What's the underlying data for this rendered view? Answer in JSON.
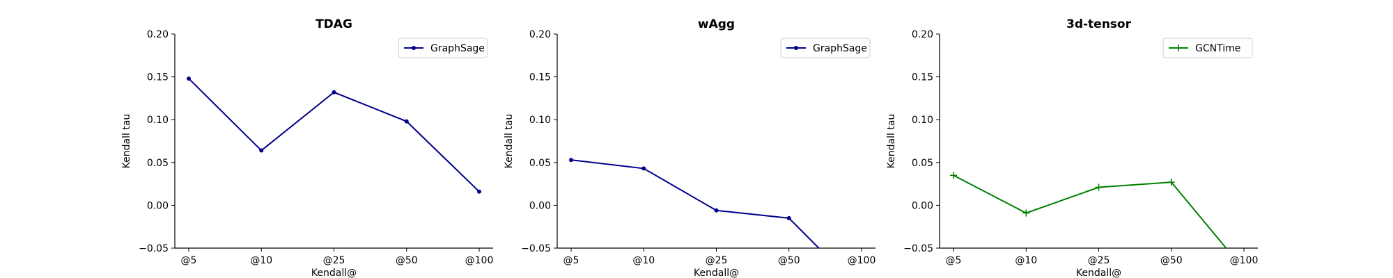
{
  "chart_data": [
    {
      "type": "line",
      "title": "TDAG",
      "xlabel": "Kendall@",
      "ylabel": "Kendall tau",
      "categories": [
        "@5",
        "@10",
        "@25",
        "@50",
        "@100"
      ],
      "ylim": [
        -0.05,
        0.2
      ],
      "yticks": [
        "−0.05",
        "0.00",
        "0.05",
        "0.10",
        "0.15",
        "0.20"
      ],
      "grid": false,
      "legend_position": "top-right",
      "series": [
        {
          "name": "GraphSage",
          "values": [
            0.148,
            0.064,
            0.132,
            0.098,
            0.016
          ],
          "color": "#00008b",
          "marker": "dot"
        }
      ]
    },
    {
      "type": "line",
      "title": "wAgg",
      "xlabel": "Kendall@",
      "ylabel": "Kendall tau",
      "categories": [
        "@5",
        "@10",
        "@25",
        "@50",
        "@100"
      ],
      "ylim": [
        -0.05,
        0.2
      ],
      "yticks": [
        "−0.05",
        "0.00",
        "0.05",
        "0.10",
        "0.15",
        "0.20"
      ],
      "grid": false,
      "legend_position": "top-right",
      "series": [
        {
          "name": "GraphSage",
          "values": [
            0.053,
            0.043,
            -0.006,
            -0.015,
            -0.1
          ],
          "color": "#00008b",
          "marker": "dot"
        }
      ]
    },
    {
      "type": "line",
      "title": "3d-tensor",
      "xlabel": "Kendall@",
      "ylabel": "Kendall tau",
      "categories": [
        "@5",
        "@10",
        "@25",
        "@50",
        "@100"
      ],
      "ylim": [
        -0.05,
        0.2
      ],
      "yticks": [
        "−0.05",
        "0.00",
        "0.05",
        "0.10",
        "0.15",
        "0.20"
      ],
      "grid": false,
      "legend_position": "top-right",
      "series": [
        {
          "name": "GCNTime",
          "values": [
            0.035,
            -0.009,
            0.021,
            0.027,
            -0.075
          ],
          "color": "#008000",
          "marker": "plus"
        }
      ]
    }
  ]
}
